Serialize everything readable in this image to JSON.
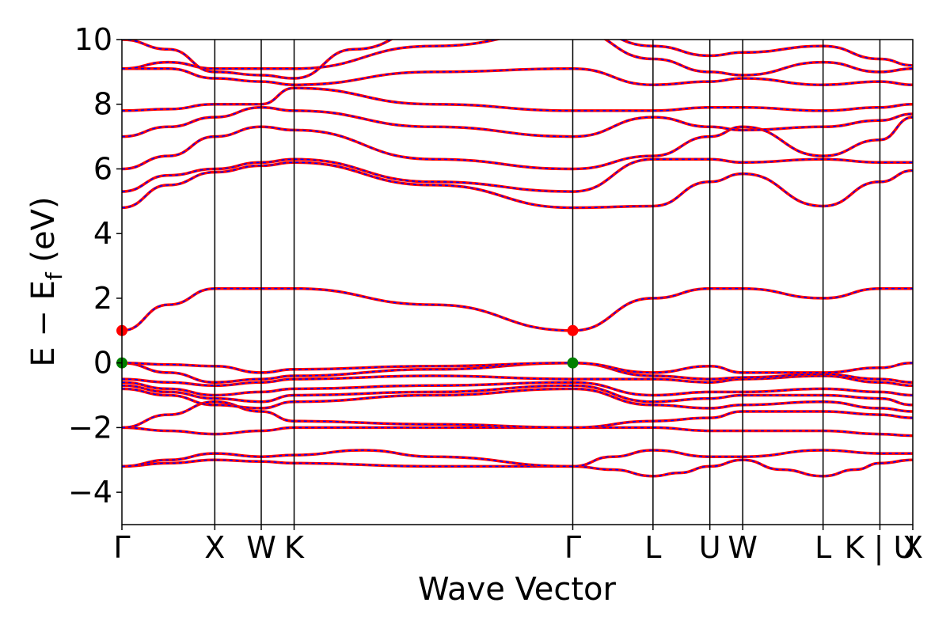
{
  "chart_data": {
    "type": "line",
    "title": "",
    "xlabel": "Wave Vector",
    "ylabel": {
      "prefix": "E − E",
      "subscript": "f",
      "suffix": " (eV)"
    },
    "ylim": [
      -5,
      10
    ],
    "yticks": [
      -4,
      -2,
      0,
      2,
      4,
      6,
      8,
      10
    ],
    "ytick_labels": [
      "−4",
      "−2",
      "0",
      "2",
      "4",
      "6",
      "8",
      "10"
    ],
    "kpath": {
      "labels": [
        "Γ",
        "X",
        "W",
        "K",
        "Γ",
        "L",
        "U",
        "W",
        "L",
        "K | U",
        "X"
      ],
      "positions": [
        0.0,
        1.0,
        1.5,
        1.854,
        4.854,
        5.718,
        6.33,
        6.684,
        7.549,
        8.161,
        8.515
      ]
    },
    "grid": false,
    "legend": "none",
    "series_style": {
      "base_color": "#ff0000",
      "dash_color": "#0000ff"
    },
    "series": [
      {
        "x": [
          0,
          0.5,
          1.0,
          1.5,
          1.854,
          3.35,
          4.854,
          5.28,
          5.718,
          6.0,
          6.33,
          6.684,
          7.1,
          7.549,
          7.9,
          8.161,
          8.515
        ],
        "y": [
          -3.2,
          -3.1,
          -3.0,
          -3.05,
          -3.1,
          -3.2,
          -3.2,
          -3.3,
          -3.5,
          -3.4,
          -3.2,
          -3.0,
          -3.3,
          -3.5,
          -3.3,
          -3.1,
          -3.0
        ]
      },
      {
        "x": [
          0,
          0.5,
          1.0,
          1.5,
          1.854,
          2.6,
          3.35,
          4.854,
          5.28,
          5.718,
          6.33,
          6.684,
          7.549,
          8.161,
          8.515
        ],
        "y": [
          -3.2,
          -3.0,
          -2.8,
          -2.9,
          -2.85,
          -2.7,
          -2.9,
          -3.2,
          -2.9,
          -2.7,
          -2.9,
          -2.9,
          -2.7,
          -2.8,
          -2.8
        ]
      },
      {
        "x": [
          0,
          0.5,
          1.0,
          1.5,
          1.854,
          3.35,
          4.854,
          5.718,
          6.33,
          6.684,
          7.549,
          8.161,
          8.515
        ],
        "y": [
          -2.0,
          -2.1,
          -2.2,
          -2.1,
          -2.0,
          -2.0,
          -2.0,
          -2.0,
          -2.1,
          -2.1,
          -2.1,
          -2.2,
          -2.25
        ]
      },
      {
        "x": [
          0,
          0.5,
          1.0,
          1.5,
          1.854,
          3.35,
          4.854,
          5.718,
          6.33,
          6.684,
          7.549,
          8.161,
          8.515
        ],
        "y": [
          -2.0,
          -1.6,
          -1.2,
          -1.5,
          -1.8,
          -1.9,
          -2.0,
          -1.8,
          -1.7,
          -1.5,
          -1.5,
          -1.6,
          -1.7
        ]
      },
      {
        "x": [
          0,
          0.5,
          1.0,
          1.5,
          1.854,
          3.35,
          4.854,
          5.718,
          6.33,
          6.684,
          7.549,
          8.161,
          8.515
        ],
        "y": [
          -0.8,
          -1.0,
          -1.3,
          -1.4,
          -1.2,
          -1.0,
          -0.8,
          -1.3,
          -1.4,
          -1.3,
          -1.2,
          -1.4,
          -1.5
        ]
      },
      {
        "x": [
          0,
          0.5,
          1.0,
          1.5,
          1.854,
          3.35,
          4.854,
          5.718,
          6.33,
          6.684,
          7.549,
          8.161,
          8.515
        ],
        "y": [
          -0.7,
          -0.9,
          -1.1,
          -1.2,
          -1.0,
          -0.9,
          -0.7,
          -1.2,
          -1.1,
          -1.0,
          -1.0,
          -1.1,
          -1.3
        ]
      },
      {
        "x": [
          0,
          0.5,
          1.0,
          1.5,
          1.854,
          3.35,
          4.854,
          5.718,
          6.33,
          6.684,
          7.549,
          8.161,
          8.515
        ],
        "y": [
          -0.6,
          -0.8,
          -1.0,
          -0.9,
          -0.8,
          -0.7,
          -0.6,
          -1.0,
          -0.9,
          -0.9,
          -0.8,
          -0.9,
          -1.0
        ]
      },
      {
        "x": [
          0,
          0.5,
          1.0,
          1.5,
          1.854,
          3.35,
          4.854,
          5.718,
          6.33,
          6.684,
          7.549,
          8.161,
          8.515
        ],
        "y": [
          -0.5,
          -0.6,
          -0.7,
          -0.6,
          -0.5,
          -0.4,
          -0.5,
          -0.5,
          -0.6,
          -0.5,
          -0.4,
          -0.6,
          -0.7
        ]
      },
      {
        "x": [
          0,
          0.5,
          1.0,
          1.5,
          1.854,
          3.35,
          4.854,
          5.718,
          6.33,
          6.684,
          7.549,
          8.161,
          8.515
        ],
        "y": [
          0,
          -0.3,
          -0.6,
          -0.5,
          -0.4,
          -0.2,
          0,
          -0.4,
          -0.5,
          -0.45,
          -0.35,
          -0.5,
          -0.6
        ]
      },
      {
        "x": [
          0,
          0.5,
          1.0,
          1.5,
          1.854,
          3.35,
          4.854,
          5.718,
          6.33,
          6.684,
          7.549,
          8.161,
          8.515
        ],
        "y": [
          0,
          -0.05,
          -0.1,
          -0.3,
          -0.2,
          -0.1,
          0,
          -0.3,
          -0.1,
          -0.3,
          -0.3,
          -0.15,
          0
        ]
      },
      {
        "x": [
          0,
          0.5,
          1.0,
          1.5,
          1.854,
          3.35,
          4.854,
          5.718,
          6.33,
          6.684,
          7.549,
          8.161,
          8.515
        ],
        "y": [
          1.0,
          1.8,
          2.3,
          2.3,
          2.3,
          1.8,
          1.0,
          2.0,
          2.3,
          2.3,
          2.0,
          2.3,
          2.3
        ]
      },
      {
        "x": [
          0,
          0.5,
          1.0,
          1.5,
          1.854,
          3.35,
          4.854,
          5.718,
          6.33,
          6.684,
          7.549,
          8.161,
          8.515
        ],
        "y": [
          4.8,
          5.5,
          5.9,
          6.1,
          6.2,
          5.5,
          4.8,
          4.85,
          5.6,
          5.85,
          4.85,
          5.6,
          5.95
        ]
      },
      {
        "x": [
          0,
          0.5,
          1.0,
          1.5,
          1.854,
          3.35,
          4.854,
          5.718,
          6.33,
          6.684,
          7.549,
          8.161,
          8.515
        ],
        "y": [
          5.3,
          5.8,
          6.0,
          6.2,
          6.3,
          5.6,
          5.3,
          6.3,
          6.3,
          6.2,
          6.3,
          6.2,
          6.2
        ]
      },
      {
        "x": [
          0,
          0.5,
          1.0,
          1.5,
          1.854,
          3.35,
          4.854,
          5.718,
          6.33,
          6.684,
          7.549,
          8.161,
          8.515
        ],
        "y": [
          6.0,
          6.4,
          7.0,
          7.3,
          7.2,
          6.3,
          6.0,
          6.4,
          7.0,
          7.3,
          6.4,
          6.9,
          7.6
        ]
      },
      {
        "x": [
          0,
          0.5,
          1.0,
          1.5,
          1.854,
          3.35,
          4.854,
          5.718,
          6.33,
          6.684,
          7.549,
          8.161,
          8.515
        ],
        "y": [
          7.0,
          7.3,
          7.6,
          7.9,
          7.8,
          7.3,
          7.0,
          7.6,
          7.3,
          7.2,
          7.3,
          7.5,
          7.7
        ]
      },
      {
        "x": [
          0,
          0.5,
          1.0,
          1.5,
          1.854,
          3.35,
          4.854,
          5.718,
          6.33,
          6.684,
          7.549,
          8.161,
          8.515
        ],
        "y": [
          7.8,
          7.85,
          8.0,
          8.0,
          8.5,
          8.0,
          7.8,
          7.8,
          7.9,
          7.9,
          7.8,
          7.9,
          8.0
        ]
      },
      {
        "x": [
          0,
          0.5,
          1.0,
          1.5,
          1.854,
          3.35,
          4.854,
          5.718,
          6.33,
          6.684,
          7.549,
          8.161,
          8.515
        ],
        "y": [
          9.1,
          9.1,
          8.8,
          8.7,
          8.6,
          9.0,
          9.1,
          8.6,
          8.7,
          8.8,
          8.6,
          8.7,
          8.6
        ]
      },
      {
        "x": [
          0,
          0.5,
          1.0,
          1.5,
          1.854,
          3.35,
          4.854,
          5.718,
          6.33,
          6.684,
          7.549,
          8.161,
          8.515
        ],
        "y": [
          9.1,
          9.3,
          9.1,
          9.1,
          9.1,
          9.8,
          10.3,
          9.4,
          9.0,
          8.9,
          9.3,
          9.0,
          9.1
        ]
      },
      {
        "x": [
          0,
          0.5,
          1.0,
          1.5,
          1.854,
          2.5,
          3.35,
          4.854,
          5.718,
          6.33,
          6.684,
          7.549,
          8.161,
          8.515
        ],
        "y": [
          10.0,
          9.7,
          9.0,
          8.9,
          8.8,
          9.7,
          10.4,
          10.5,
          9.8,
          9.5,
          9.6,
          9.8,
          9.4,
          9.2
        ]
      }
    ],
    "cbm_markers": [
      {
        "x": 0,
        "y": 1.0
      },
      {
        "x": 4.854,
        "y": 1.0
      }
    ],
    "vbm_markers": [
      {
        "x": 0,
        "y": 0
      },
      {
        "x": 4.854,
        "y": 0
      }
    ],
    "marker_colors": {
      "cbm": "#ff0000",
      "vbm": "#008000"
    }
  }
}
